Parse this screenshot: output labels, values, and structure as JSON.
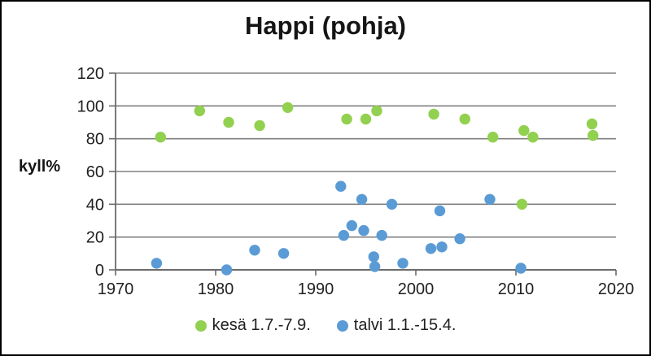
{
  "chart_data": {
    "type": "scatter",
    "title": "Happi (pohja)",
    "ylabel": "kyll%",
    "xlabel": "",
    "xlim": [
      1970,
      2020
    ],
    "ylim": [
      0,
      120
    ],
    "xticks": [
      1970,
      1980,
      1990,
      2000,
      2010,
      2020
    ],
    "yticks": [
      0,
      20,
      40,
      60,
      80,
      100,
      120
    ],
    "grid": "horizontal",
    "legend_position": "bottom",
    "colors": {
      "grid": "#808080",
      "axis": "#6b6b6b",
      "tick_text": "#1f1f1f"
    },
    "series": [
      {
        "id": "kesa",
        "name": "kesä 1.7.-7.9.",
        "color": "#92d050",
        "points": [
          [
            1974.5,
            81
          ],
          [
            1978.4,
            97
          ],
          [
            1981.3,
            90
          ],
          [
            1984.4,
            88
          ],
          [
            1987.2,
            99
          ],
          [
            1993.1,
            92
          ],
          [
            1995.0,
            92
          ],
          [
            1996.1,
            97
          ],
          [
            2001.8,
            95
          ],
          [
            2004.9,
            92
          ],
          [
            2007.7,
            81
          ],
          [
            2010.6,
            40
          ],
          [
            2010.8,
            85
          ],
          [
            2011.7,
            81
          ],
          [
            2017.6,
            89
          ],
          [
            2017.7,
            82
          ]
        ]
      },
      {
        "id": "talvi",
        "name": "talvi 1.1.-15.4.",
        "color": "#5b9bd5",
        "points": [
          [
            1974.1,
            4
          ],
          [
            1981.1,
            0
          ],
          [
            1983.9,
            12
          ],
          [
            1986.8,
            10
          ],
          [
            1992.5,
            51
          ],
          [
            1992.8,
            21
          ],
          [
            1993.6,
            27
          ],
          [
            1994.6,
            43
          ],
          [
            1994.8,
            24
          ],
          [
            1995.8,
            8
          ],
          [
            1995.9,
            2
          ],
          [
            1996.6,
            21
          ],
          [
            1997.6,
            40
          ],
          [
            1998.7,
            4
          ],
          [
            2001.5,
            13
          ],
          [
            2002.4,
            36
          ],
          [
            2002.6,
            14
          ],
          [
            2004.4,
            19
          ],
          [
            2007.4,
            43
          ],
          [
            2010.5,
            1
          ]
        ]
      }
    ]
  }
}
